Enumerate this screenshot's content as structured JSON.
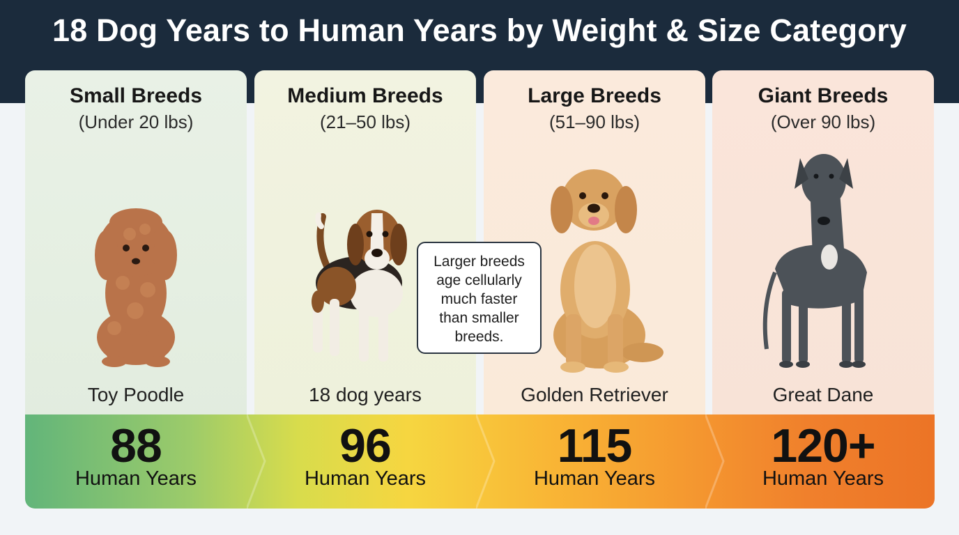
{
  "title": "18 Dog Years to Human Years by Weight & Size Category",
  "cards": [
    {
      "heading": "Small Breeds",
      "range": "(Under 20 lbs)",
      "caption": "Toy Poodle",
      "dog_icon": "toy-poodle-illustration",
      "age": "88",
      "age_label": "Human Years"
    },
    {
      "heading": "Medium Breeds",
      "range": "(21–50 lbs)",
      "caption": "18 dog years",
      "dog_icon": "beagle-illustration",
      "age": "96",
      "age_label": "Human Years"
    },
    {
      "heading": "Large Breeds",
      "range": "(51–90 lbs)",
      "caption": "Golden Retriever",
      "dog_icon": "golden-retriever-illustration",
      "age": "115",
      "age_label": "Human Years"
    },
    {
      "heading": "Giant Breeds",
      "range": "(Over 90 lbs)",
      "caption": "Great Dane",
      "dog_icon": "great-dane-illustration",
      "age": "120+",
      "age_label": "Human Years"
    }
  ],
  "callout": {
    "lines": [
      "Larger breeds",
      "age cellularly",
      "much faster",
      "than smaller",
      "breeds."
    ]
  },
  "colors": {
    "header": "#1b2b3c",
    "gradient_start": "#62b57a",
    "gradient_mid": "#f6d640",
    "gradient_end": "#ec7426"
  }
}
